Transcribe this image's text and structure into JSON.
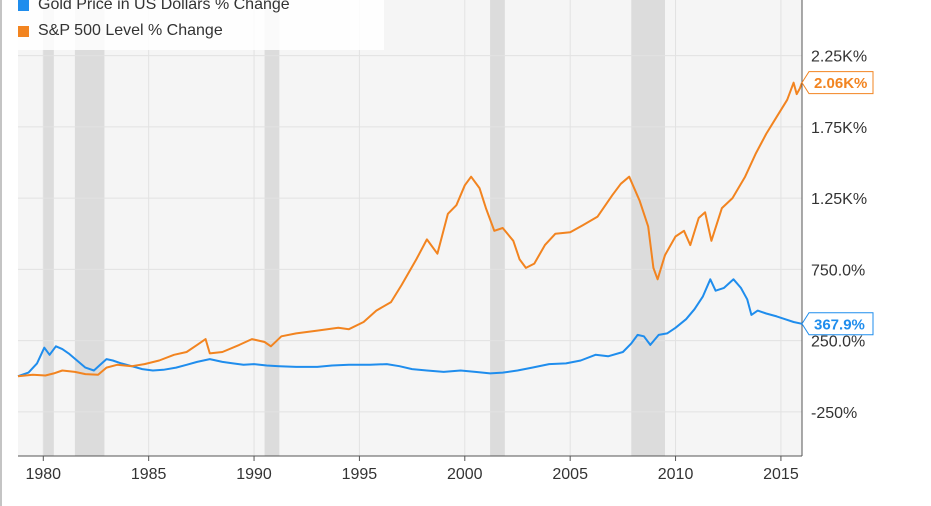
{
  "chart_data": {
    "type": "line",
    "x_unit": "year",
    "xlim": [
      1978.8,
      2016.0
    ],
    "ylim": [
      -560,
      2640
    ],
    "y_ticks": [
      {
        "value": -250,
        "label": "-250%"
      },
      {
        "value": 250,
        "label": "250.0%"
      },
      {
        "value": 750,
        "label": "750.0%"
      },
      {
        "value": 1250,
        "label": "1.25K%"
      },
      {
        "value": 1750,
        "label": "1.75K%"
      },
      {
        "value": 2250,
        "label": "2.25K%"
      }
    ],
    "x_ticks": [
      {
        "value": 1980,
        "label": "1980"
      },
      {
        "value": 1985,
        "label": "1985"
      },
      {
        "value": 1990,
        "label": "1990"
      },
      {
        "value": 1995,
        "label": "1995"
      },
      {
        "value": 2000,
        "label": "2000"
      },
      {
        "value": 2005,
        "label": "2005"
      },
      {
        "value": 2010,
        "label": "2010"
      },
      {
        "value": 2015,
        "label": "2015"
      }
    ],
    "grid": true,
    "legend_position": "top-left",
    "recession_bands": [
      [
        1980.0,
        1980.5
      ],
      [
        1981.5,
        1982.9
      ],
      [
        1990.5,
        1991.2
      ],
      [
        2001.2,
        2001.9
      ],
      [
        2007.9,
        2009.5
      ]
    ],
    "series": [
      {
        "name": "Gold Price in US Dollars % Change",
        "color": "#1f8ded",
        "end_label": "367.9%",
        "points": [
          [
            1978.8,
            0
          ],
          [
            1979.3,
            25
          ],
          [
            1979.7,
            90
          ],
          [
            1980.05,
            200
          ],
          [
            1980.3,
            150
          ],
          [
            1980.6,
            210
          ],
          [
            1980.9,
            190
          ],
          [
            1981.2,
            160
          ],
          [
            1981.6,
            110
          ],
          [
            1982.0,
            60
          ],
          [
            1982.4,
            40
          ],
          [
            1982.7,
            80
          ],
          [
            1983.0,
            120
          ],
          [
            1983.3,
            110
          ],
          [
            1983.7,
            90
          ],
          [
            1984.2,
            70
          ],
          [
            1984.7,
            50
          ],
          [
            1985.2,
            40
          ],
          [
            1985.7,
            45
          ],
          [
            1986.3,
            60
          ],
          [
            1986.8,
            80
          ],
          [
            1987.3,
            100
          ],
          [
            1987.9,
            120
          ],
          [
            1988.5,
            100
          ],
          [
            1989.0,
            90
          ],
          [
            1989.5,
            80
          ],
          [
            1990.0,
            85
          ],
          [
            1990.6,
            75
          ],
          [
            1991.2,
            70
          ],
          [
            1992.0,
            65
          ],
          [
            1993.0,
            65
          ],
          [
            1993.7,
            75
          ],
          [
            1994.5,
            80
          ],
          [
            1995.5,
            80
          ],
          [
            1996.3,
            85
          ],
          [
            1996.9,
            70
          ],
          [
            1997.5,
            50
          ],
          [
            1998.2,
            40
          ],
          [
            1999.0,
            30
          ],
          [
            1999.8,
            40
          ],
          [
            2000.5,
            30
          ],
          [
            2001.2,
            20
          ],
          [
            2001.8,
            25
          ],
          [
            2002.5,
            40
          ],
          [
            2003.2,
            60
          ],
          [
            2004.0,
            85
          ],
          [
            2004.8,
            90
          ],
          [
            2005.5,
            110
          ],
          [
            2006.2,
            150
          ],
          [
            2006.8,
            140
          ],
          [
            2007.5,
            170
          ],
          [
            2007.9,
            230
          ],
          [
            2008.2,
            290
          ],
          [
            2008.5,
            280
          ],
          [
            2008.8,
            220
          ],
          [
            2009.2,
            290
          ],
          [
            2009.6,
            300
          ],
          [
            2010.0,
            340
          ],
          [
            2010.5,
            400
          ],
          [
            2010.9,
            470
          ],
          [
            2011.3,
            560
          ],
          [
            2011.65,
            680
          ],
          [
            2011.9,
            600
          ],
          [
            2012.3,
            620
          ],
          [
            2012.75,
            680
          ],
          [
            2013.1,
            620
          ],
          [
            2013.4,
            540
          ],
          [
            2013.6,
            430
          ],
          [
            2013.9,
            460
          ],
          [
            2014.3,
            440
          ],
          [
            2014.8,
            420
          ],
          [
            2015.2,
            400
          ],
          [
            2015.6,
            380
          ],
          [
            2016.0,
            368
          ]
        ]
      },
      {
        "name": "S&P 500 Level % Change",
        "color": "#f28420",
        "end_label": "2.06K%",
        "points": [
          [
            1978.8,
            0
          ],
          [
            1979.5,
            10
          ],
          [
            1980.1,
            5
          ],
          [
            1980.5,
            20
          ],
          [
            1980.9,
            40
          ],
          [
            1981.5,
            30
          ],
          [
            1982.0,
            15
          ],
          [
            1982.6,
            10
          ],
          [
            1983.0,
            60
          ],
          [
            1983.5,
            80
          ],
          [
            1984.2,
            70
          ],
          [
            1984.8,
            85
          ],
          [
            1985.5,
            110
          ],
          [
            1986.2,
            150
          ],
          [
            1986.8,
            170
          ],
          [
            1987.3,
            220
          ],
          [
            1987.7,
            260
          ],
          [
            1987.9,
            160
          ],
          [
            1988.5,
            170
          ],
          [
            1989.3,
            220
          ],
          [
            1989.9,
            260
          ],
          [
            1990.5,
            240
          ],
          [
            1990.8,
            210
          ],
          [
            1991.3,
            280
          ],
          [
            1992.0,
            300
          ],
          [
            1993.0,
            320
          ],
          [
            1994.0,
            340
          ],
          [
            1994.5,
            330
          ],
          [
            1995.2,
            380
          ],
          [
            1995.8,
            460
          ],
          [
            1996.5,
            520
          ],
          [
            1997.0,
            640
          ],
          [
            1997.7,
            820
          ],
          [
            1998.2,
            960
          ],
          [
            1998.7,
            860
          ],
          [
            1999.2,
            1140
          ],
          [
            1999.6,
            1200
          ],
          [
            2000.0,
            1340
          ],
          [
            2000.3,
            1400
          ],
          [
            2000.7,
            1320
          ],
          [
            2001.0,
            1180
          ],
          [
            2001.4,
            1020
          ],
          [
            2001.8,
            1040
          ],
          [
            2002.3,
            950
          ],
          [
            2002.6,
            820
          ],
          [
            2002.9,
            760
          ],
          [
            2003.3,
            790
          ],
          [
            2003.8,
            920
          ],
          [
            2004.3,
            1000
          ],
          [
            2005.0,
            1010
          ],
          [
            2005.6,
            1060
          ],
          [
            2006.3,
            1120
          ],
          [
            2007.0,
            1270
          ],
          [
            2007.4,
            1350
          ],
          [
            2007.8,
            1400
          ],
          [
            2008.3,
            1230
          ],
          [
            2008.7,
            1050
          ],
          [
            2008.95,
            760
          ],
          [
            2009.15,
            680
          ],
          [
            2009.5,
            850
          ],
          [
            2010.0,
            980
          ],
          [
            2010.4,
            1020
          ],
          [
            2010.7,
            920
          ],
          [
            2011.1,
            1110
          ],
          [
            2011.4,
            1150
          ],
          [
            2011.7,
            950
          ],
          [
            2012.2,
            1180
          ],
          [
            2012.7,
            1250
          ],
          [
            2013.3,
            1400
          ],
          [
            2013.8,
            1560
          ],
          [
            2014.3,
            1700
          ],
          [
            2014.8,
            1820
          ],
          [
            2015.3,
            1940
          ],
          [
            2015.6,
            2060
          ],
          [
            2015.75,
            1980
          ],
          [
            2015.9,
            2020
          ],
          [
            2016.0,
            2060
          ]
        ]
      }
    ]
  }
}
